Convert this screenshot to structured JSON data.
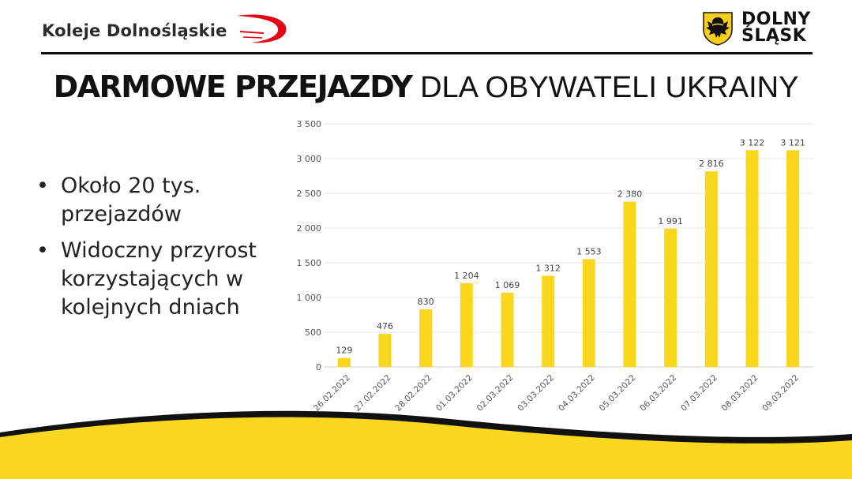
{
  "header": {
    "brand_left": "Koleje Dolnośląskie",
    "brand_right_line1": "DOLNY",
    "brand_right_line2": "ŚLĄSK"
  },
  "title": {
    "bold": "DARMOWE PRZEJAZDY",
    "light": "DLA OBYWATELI UKRAINY"
  },
  "bullets": [
    "Około 20 tys. przejazdów",
    "Widoczny przyrost korzystających w kolejnych dniach"
  ],
  "colors": {
    "bar": "#F9D71C",
    "wave_yellow": "#FCD720",
    "wave_black": "#111111",
    "swoosh_red": "#E30613"
  },
  "chart_data": {
    "type": "bar",
    "categories": [
      "26.02.2022",
      "27.02.2022",
      "28.02.2022",
      "01.03.2022",
      "02.03.2022",
      "03.03.2022",
      "04.03.2022",
      "05.03.2022",
      "06.03.2022",
      "07.03.2022",
      "08.03.2022",
      "09.03.2022"
    ],
    "values": [
      129,
      476,
      830,
      1204,
      1069,
      1312,
      1553,
      2380,
      1991,
      2816,
      3122,
      3121
    ],
    "value_labels": [
      "129",
      "476",
      "830",
      "1 204",
      "1 069",
      "1 312",
      "1 553",
      "2 380",
      "1 991",
      "2 816",
      "3 122",
      "3 121"
    ],
    "yticks": [
      0,
      500,
      1000,
      1500,
      2000,
      2500,
      3000,
      3500
    ],
    "ytick_labels": [
      "0",
      "500",
      "1 000",
      "1 500",
      "2 000",
      "2 500",
      "3 000",
      "3 500"
    ],
    "ylim": [
      0,
      3500
    ],
    "grid": true,
    "legend": "none"
  }
}
